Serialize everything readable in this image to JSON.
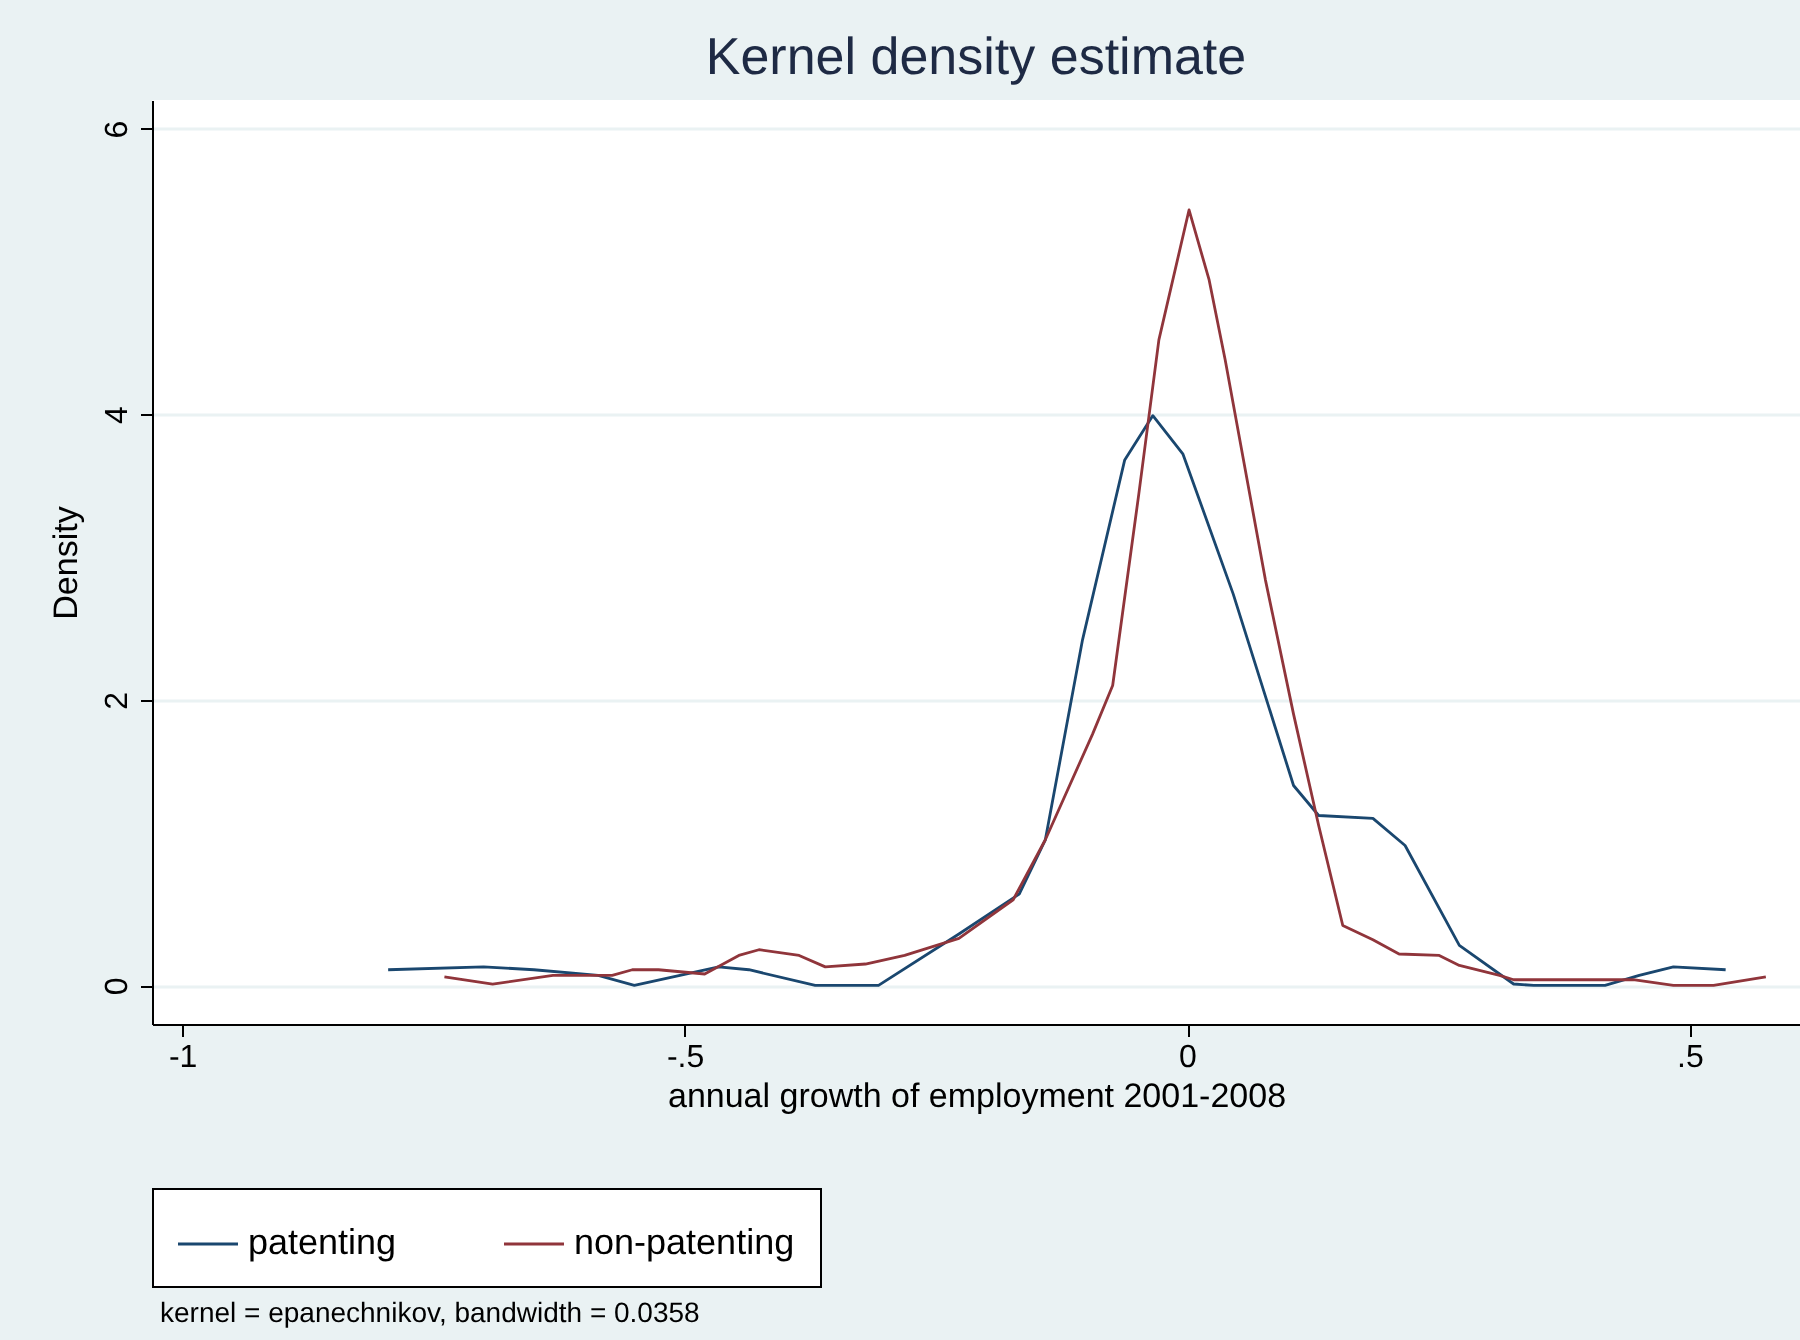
{
  "chart_data": {
    "type": "line",
    "title": "Kernel density estimate",
    "xlabel": "annual growth of employment 2001-2008",
    "ylabel": "Density",
    "annotations": [
      "kernel = epanechnikov, bandwidth = 0.0358"
    ],
    "xlim": [
      -1.03,
      0.61
    ],
    "xticks": [
      {
        "value": -1,
        "label": "-1"
      },
      {
        "value": -0.5,
        "label": "-.5"
      },
      0,
      {
        "value": 0.5,
        "label": ".5"
      }
    ],
    "ylim": [
      -0.27,
      6.2
    ],
    "yticks": [
      0,
      2,
      4,
      6
    ],
    "grid": "y",
    "legend": "bottom",
    "line_style": "solid",
    "marker": "none",
    "series": [
      {
        "name": "patenting",
        "color": "#1a476f",
        "x": [
          -0.795,
          -0.7,
          -0.65,
          -0.586,
          -0.55,
          -0.466,
          -0.436,
          -0.37,
          -0.307,
          -0.227,
          -0.167,
          -0.141,
          -0.104,
          -0.062,
          -0.034,
          -0.004,
          0.046,
          0.106,
          0.131,
          0.185,
          0.217,
          0.271,
          0.325,
          0.345,
          0.416,
          0.45,
          0.484,
          0.536
        ],
        "values": [
          0.11,
          0.13,
          0.11,
          0.07,
          0,
          0.13,
          0.11,
          0,
          0,
          0.36,
          0.64,
          1.02,
          2.42,
          3.68,
          3.99,
          3.72,
          2.74,
          1.4,
          1.19,
          1.17,
          0.98,
          0.28,
          0.01,
          0,
          0,
          0.07,
          0.13,
          0.11
        ]
      },
      {
        "name": "non-patenting",
        "color": "#90353b",
        "x": [
          -0.739,
          -0.691,
          -0.631,
          -0.572,
          -0.552,
          -0.526,
          -0.48,
          -0.446,
          -0.426,
          -0.386,
          -0.36,
          -0.32,
          -0.281,
          -0.227,
          -0.173,
          -0.141,
          -0.094,
          -0.074,
          -0.048,
          -0.028,
          0.002,
          0.022,
          0.038,
          0.078,
          0.106,
          0.131,
          0.155,
          0.185,
          0.211,
          0.251,
          0.271,
          0.311,
          0.325,
          0.444,
          0.484,
          0.524,
          0.576
        ],
        "values": [
          0.06,
          0.01,
          0.07,
          0.07,
          0.11,
          0.11,
          0.08,
          0.21,
          0.25,
          0.21,
          0.13,
          0.15,
          0.21,
          0.33,
          0.6,
          1.02,
          1.76,
          2.1,
          3.44,
          4.52,
          5.43,
          4.94,
          4.38,
          2.84,
          1.9,
          1.12,
          0.42,
          0.32,
          0.22,
          0.21,
          0.14,
          0.07,
          0.04,
          0.04,
          0,
          0,
          0.06
        ]
      }
    ]
  }
}
